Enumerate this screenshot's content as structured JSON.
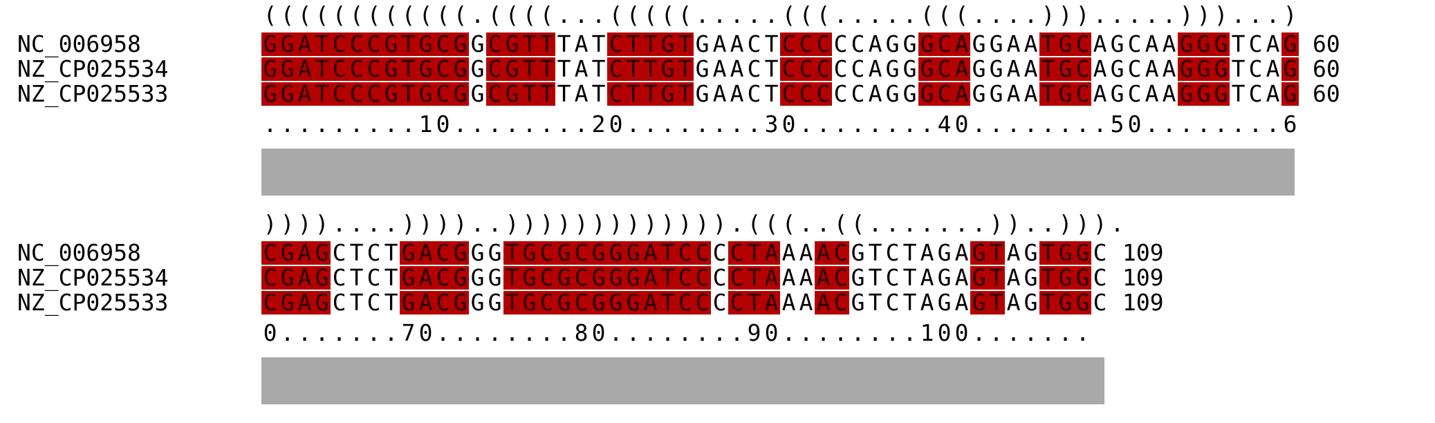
{
  "blocks": [
    {
      "structure": "((((((((((((.((((...(((((.....(((.....(((....))).....)))...)",
      "ruler": ".........10........20........30........40........50........6",
      "rows": [
        {
          "name": "NC_006958",
          "seq": "GGATCCCGTGCGGCGTTTATCTTGTGAACTCCCCCAGGGCAGGAATGCAGCAAGGGTCAG",
          "end": "60"
        },
        {
          "name": "NZ_CP025534",
          "seq": "GGATCCCGTGCGGCGTTTATCTTGTGAACTCCCCCAGGGCAGGAATGCAGCAAGGGTCAG",
          "end": "60"
        },
        {
          "name": "NZ_CP025533",
          "seq": "GGATCCCGTGCGGCGTTTATCTTGTGAACTCCCCCAGGGCAGGAATGCAGCAAGGGTCAG",
          "end": "60"
        }
      ],
      "highlight_ranges": [
        [
          0,
          11
        ],
        [
          13,
          16
        ],
        [
          20,
          24
        ],
        [
          30,
          32
        ],
        [
          38,
          40
        ],
        [
          45,
          47
        ],
        [
          53,
          55
        ],
        [
          59,
          59
        ]
      ]
    },
    {
      "structure": "))))....))))..))))))))))))).(((..((.......))..))).",
      "ruler": "0.......70........80........90........100.......",
      "rows": [
        {
          "name": "NC_006958",
          "seq": "CGAGCTCTGACGGGTGCGCGGGATCCCCTAAAACGTCTAGAGTAGTGGC",
          "end": "109"
        },
        {
          "name": "NZ_CP025534",
          "seq": "CGAGCTCTGACGGGTGCGCGGGATCCCCTAAAACGTCTAGAGTAGTGGC",
          "end": "109"
        },
        {
          "name": "NZ_CP025533",
          "seq": "CGAGCTCTGACGGGTGCGCGGGATCCCCTAAAACGTCTAGAGTAGTGGC",
          "end": "109"
        }
      ],
      "highlight_ranges": [
        [
          0,
          3
        ],
        [
          8,
          11
        ],
        [
          14,
          25
        ],
        [
          27,
          29
        ],
        [
          32,
          33
        ],
        [
          41,
          42
        ],
        [
          45,
          47
        ]
      ]
    }
  ],
  "colors": {
    "highlight": "#b30000",
    "bar": "#a9a9a9"
  }
}
